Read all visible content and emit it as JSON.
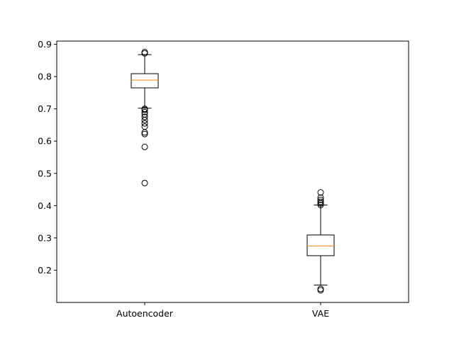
{
  "chart_data": {
    "type": "box",
    "title": "",
    "xlabel": "",
    "ylabel": "",
    "ylim": [
      0.1,
      0.91
    ],
    "yticks": [
      0.2,
      0.3,
      0.4,
      0.5,
      0.6,
      0.7,
      0.8,
      0.9
    ],
    "ytick_labels": [
      "0.2",
      "0.3",
      "0.4",
      "0.5",
      "0.6",
      "0.7",
      "0.8",
      "0.9"
    ],
    "grid": false,
    "colors": {
      "box": "#000000",
      "median": "#ff7f0e",
      "flier": "#000000"
    },
    "categories": [
      "Autoencoder",
      "VAE"
    ],
    "boxes": [
      {
        "label": "Autoencoder",
        "whisker_low": 0.702,
        "q1": 0.765,
        "median": 0.789,
        "q3": 0.809,
        "whisker_high": 0.868,
        "outliers": [
          0.47,
          0.582,
          0.622,
          0.627,
          0.645,
          0.655,
          0.665,
          0.675,
          0.683,
          0.69,
          0.697,
          0.7,
          0.872,
          0.876
        ]
      },
      {
        "label": "VAE",
        "whisker_low": 0.154,
        "q1": 0.245,
        "median": 0.275,
        "q3": 0.309,
        "whisker_high": 0.402,
        "outliers": [
          0.138,
          0.142,
          0.402,
          0.407,
          0.412,
          0.418,
          0.425,
          0.441
        ]
      }
    ]
  }
}
